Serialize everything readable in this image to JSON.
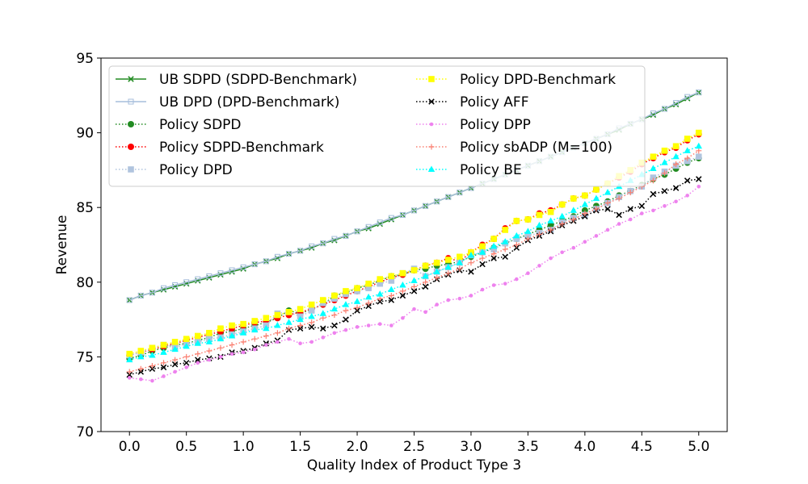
{
  "chart_data": {
    "type": "line",
    "title": "",
    "xlabel": "Quality Index of Product Type 3",
    "ylabel": "Revenue",
    "xlim": [
      -0.25,
      5.25
    ],
    "ylim": [
      70,
      95
    ],
    "xticks": [
      "0.0",
      "0.5",
      "1.0",
      "1.5",
      "2.0",
      "2.5",
      "3.0",
      "3.5",
      "4.0",
      "4.5",
      "5.0"
    ],
    "yticks": [
      "70",
      "75",
      "80",
      "85",
      "90",
      "95"
    ],
    "grid": false,
    "legend_position": "top-left",
    "x": [
      0.0,
      0.1,
      0.2,
      0.3,
      0.4,
      0.5,
      0.6,
      0.7,
      0.8,
      0.9,
      1.0,
      1.1,
      1.2,
      1.3,
      1.4,
      1.5,
      1.6,
      1.7,
      1.8,
      1.9,
      2.0,
      2.1,
      2.2,
      2.3,
      2.4,
      2.5,
      2.6,
      2.7,
      2.8,
      2.9,
      3.0,
      3.1,
      3.2,
      3.3,
      3.4,
      3.5,
      3.6,
      3.7,
      3.8,
      3.9,
      4.0,
      4.1,
      4.2,
      4.3,
      4.4,
      4.5,
      4.6,
      4.7,
      4.8,
      4.9,
      5.0
    ],
    "series": [
      {
        "name": "UB SDPD (SDPD-Benchmark)",
        "color": "#228b22",
        "style": "solid",
        "marker": "x",
        "values": [
          78.8,
          79.1,
          79.3,
          79.5,
          79.7,
          79.9,
          80.1,
          80.3,
          80.5,
          80.7,
          80.9,
          81.2,
          81.4,
          81.6,
          81.9,
          82.1,
          82.3,
          82.6,
          82.8,
          83.1,
          83.4,
          83.6,
          83.9,
          84.2,
          84.5,
          84.8,
          85.1,
          85.4,
          85.7,
          86.0,
          86.3,
          86.6,
          86.9,
          87.2,
          87.5,
          87.8,
          88.1,
          88.4,
          88.7,
          89.0,
          89.3,
          89.6,
          89.9,
          90.2,
          90.6,
          90.9,
          91.2,
          91.6,
          91.9,
          92.3,
          92.7
        ]
      },
      {
        "name": "UB DPD (DPD-Benchmark)",
        "color": "#a6bddb",
        "style": "solid",
        "marker": "square-open",
        "values": [
          78.8,
          79.1,
          79.3,
          79.6,
          79.8,
          80.0,
          80.2,
          80.4,
          80.6,
          80.8,
          81.0,
          81.2,
          81.4,
          81.7,
          81.9,
          82.1,
          82.4,
          82.6,
          82.9,
          83.1,
          83.4,
          83.7,
          84.0,
          84.3,
          84.5,
          84.8,
          85.1,
          85.4,
          85.7,
          86.0,
          86.3,
          86.6,
          86.9,
          87.2,
          87.5,
          87.8,
          88.1,
          88.4,
          88.7,
          89.0,
          89.3,
          89.6,
          89.9,
          90.3,
          90.6,
          90.9,
          91.3,
          91.6,
          92.0,
          92.4,
          92.7
        ]
      },
      {
        "name": "Policy SDPD",
        "color": "#228b22",
        "style": "dotted",
        "marker": "circle",
        "values": [
          74.9,
          75.1,
          75.4,
          75.6,
          75.8,
          75.9,
          76.1,
          76.3,
          76.6,
          76.7,
          76.9,
          77.1,
          77.3,
          77.6,
          78.1,
          77.9,
          78.2,
          78.5,
          79.1,
          79.3,
          79.6,
          79.8,
          80.1,
          80.4,
          80.5,
          80.8,
          80.9,
          81.1,
          81.2,
          81.4,
          81.7,
          82.0,
          82.3,
          82.6,
          82.9,
          83.2,
          83.5,
          83.8,
          84.1,
          84.4,
          84.8,
          85.1,
          85.4,
          85.8,
          86.1,
          86.5,
          86.9,
          87.2,
          87.6,
          88.0,
          88.3
        ]
      },
      {
        "name": "Policy SDPD-Benchmark",
        "color": "#ff0000",
        "style": "dotted",
        "marker": "circle",
        "values": [
          75.1,
          75.3,
          75.5,
          75.7,
          75.9,
          76.1,
          76.3,
          76.5,
          76.7,
          76.9,
          77.1,
          77.3,
          77.4,
          77.6,
          77.8,
          78.0,
          78.2,
          78.5,
          78.8,
          79.1,
          79.4,
          79.7,
          80.0,
          80.3,
          80.5,
          80.8,
          81.1,
          81.3,
          81.6,
          81.4,
          82.0,
          82.5,
          82.9,
          83.6,
          84.1,
          84.2,
          84.6,
          84.8,
          85.2,
          85.6,
          85.8,
          86.2,
          86.6,
          87.0,
          87.4,
          87.9,
          88.3,
          88.7,
          89.0,
          89.5,
          89.9
        ]
      },
      {
        "name": "Policy DPD",
        "color": "#b0c4de",
        "style": "dotted",
        "marker": "square",
        "values": [
          75.1,
          75.3,
          75.6,
          75.8,
          75.6,
          75.9,
          76.0,
          76.2,
          76.3,
          76.5,
          76.7,
          76.9,
          77.1,
          77.9,
          78.0,
          77.7,
          78.1,
          78.6,
          78.9,
          79.2,
          79.4,
          79.6,
          79.9,
          80.1,
          80.6,
          80.9,
          80.4,
          80.7,
          81.0,
          81.3,
          81.8,
          82.0,
          82.2,
          82.6,
          82.9,
          83.1,
          83.3,
          83.5,
          84.0,
          84.3,
          84.5,
          84.9,
          85.3,
          85.7,
          86.1,
          86.4,
          87.0,
          87.4,
          87.8,
          88.1,
          88.4
        ]
      },
      {
        "name": "Policy DPD-Benchmark",
        "color": "#ffff00",
        "style": "dotted",
        "marker": "square",
        "values": [
          75.2,
          75.4,
          75.6,
          75.8,
          76.0,
          76.2,
          76.4,
          76.6,
          76.9,
          77.1,
          77.2,
          77.4,
          77.6,
          77.8,
          78.0,
          78.2,
          78.5,
          78.8,
          79.1,
          79.4,
          79.6,
          79.9,
          80.2,
          80.4,
          80.6,
          80.8,
          81.1,
          81.3,
          81.5,
          81.7,
          82.0,
          82.4,
          82.9,
          83.5,
          84.1,
          84.2,
          84.5,
          84.7,
          85.2,
          85.6,
          85.8,
          86.2,
          86.6,
          87.1,
          87.5,
          88.0,
          88.4,
          88.8,
          89.1,
          89.6,
          90.0
        ]
      },
      {
        "name": "Policy AFF",
        "color": "#000000",
        "style": "dotted",
        "marker": "x",
        "values": [
          73.8,
          74.0,
          74.2,
          74.3,
          74.5,
          74.6,
          74.8,
          74.9,
          75.0,
          75.3,
          75.4,
          75.6,
          75.9,
          76.1,
          76.8,
          76.9,
          77.0,
          76.9,
          77.1,
          77.5,
          78.1,
          78.4,
          78.7,
          78.8,
          79.1,
          79.4,
          79.7,
          80.2,
          80.5,
          80.8,
          80.7,
          81.2,
          81.6,
          81.7,
          82.3,
          82.8,
          83.1,
          83.4,
          83.8,
          84.1,
          84.4,
          84.8,
          84.9,
          84.5,
          84.9,
          85.1,
          85.9,
          86.1,
          86.3,
          86.8,
          86.9
        ]
      },
      {
        "name": "Policy DPP",
        "color": "#ee82ee",
        "style": "dotted",
        "marker": "circle-small",
        "values": [
          73.6,
          73.5,
          73.4,
          73.7,
          74.0,
          74.3,
          74.6,
          74.8,
          75.0,
          75.2,
          75.3,
          75.5,
          75.8,
          76.0,
          76.2,
          75.9,
          76.0,
          76.3,
          76.6,
          76.8,
          77.0,
          77.1,
          77.2,
          77.1,
          77.6,
          78.2,
          78.0,
          78.5,
          78.8,
          78.9,
          79.1,
          79.5,
          79.8,
          79.9,
          80.2,
          80.6,
          81.1,
          81.6,
          82.0,
          82.3,
          82.7,
          83.1,
          83.5,
          83.9,
          84.2,
          84.6,
          84.8,
          85.1,
          85.4,
          85.8,
          86.4
        ]
      },
      {
        "name": "Policy sbADP (M=100)",
        "color": "#fa8072",
        "style": "dotted",
        "marker": "plus",
        "values": [
          74.0,
          74.2,
          74.4,
          74.6,
          74.8,
          75.0,
          75.2,
          75.4,
          75.6,
          75.8,
          76.0,
          76.2,
          76.4,
          76.6,
          76.9,
          77.1,
          77.3,
          77.6,
          77.8,
          78.1,
          78.3,
          78.6,
          78.9,
          79.1,
          79.4,
          79.7,
          80.0,
          80.3,
          80.6,
          80.9,
          81.3,
          81.6,
          81.9,
          82.2,
          82.5,
          82.9,
          83.2,
          83.5,
          83.9,
          84.2,
          84.6,
          84.9,
          85.3,
          85.6,
          86.0,
          86.4,
          86.8,
          87.3,
          87.9,
          88.3,
          88.8
        ]
      },
      {
        "name": "Policy BE",
        "color": "#00ffff",
        "style": "dotted",
        "marker": "triangle",
        "values": [
          74.8,
          75.0,
          75.1,
          75.3,
          75.5,
          75.7,
          75.9,
          76.0,
          76.2,
          76.4,
          76.6,
          76.8,
          76.9,
          77.1,
          77.3,
          77.5,
          77.7,
          77.9,
          78.2,
          78.5,
          78.7,
          79.0,
          79.2,
          79.5,
          79.8,
          80.1,
          80.4,
          80.7,
          81.0,
          81.3,
          81.8,
          82.0,
          82.4,
          82.7,
          83.1,
          83.4,
          83.8,
          84.1,
          84.4,
          84.8,
          85.2,
          85.6,
          86.0,
          86.4,
          86.8,
          87.2,
          87.6,
          88.0,
          88.4,
          88.8,
          89.1
        ]
      }
    ]
  }
}
